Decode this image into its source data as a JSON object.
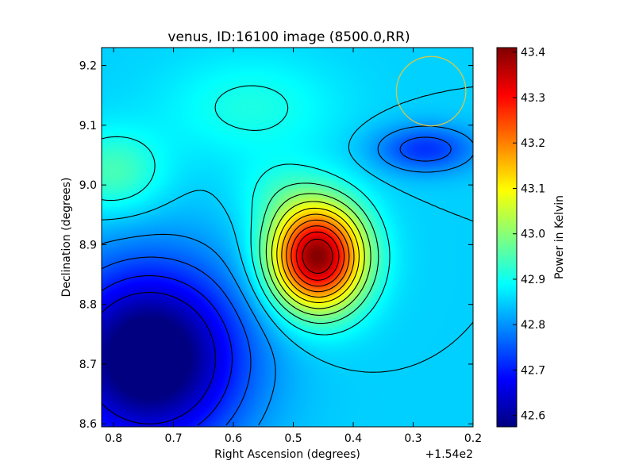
{
  "chart_data": {
    "type": "heatmap",
    "title": "venus, ID:16100 image (8500.0,RR)",
    "xlabel": "Right Ascension (degrees)",
    "ylabel": "Declination (degrees)",
    "x_offset_label": "+1.54e2",
    "xlim": [
      0.82,
      0.2
    ],
    "ylim": [
      8.595,
      9.23
    ],
    "x_ticks": [
      {
        "value": 0.8,
        "label": "0.8"
      },
      {
        "value": 0.7,
        "label": "0.7"
      },
      {
        "value": 0.6,
        "label": "0.6"
      },
      {
        "value": 0.5,
        "label": "0.5"
      },
      {
        "value": 0.4,
        "label": "0.4"
      },
      {
        "value": 0.3,
        "label": "0.3"
      },
      {
        "value": 0.2,
        "label": "0.2"
      }
    ],
    "y_ticks": [
      {
        "value": 8.6,
        "label": "8.6"
      },
      {
        "value": 8.7,
        "label": "8.7"
      },
      {
        "value": 8.8,
        "label": "8.8"
      },
      {
        "value": 8.9,
        "label": "8.9"
      },
      {
        "value": 9.0,
        "label": "9.0"
      },
      {
        "value": 9.1,
        "label": "9.1"
      },
      {
        "value": 9.2,
        "label": "9.2"
      }
    ],
    "colorbar": {
      "label": "Power in Kelvin",
      "vmin": 42.575,
      "vmax": 43.41,
      "ticks": [
        {
          "value": 42.6,
          "label": "42.6"
        },
        {
          "value": 42.7,
          "label": "42.7"
        },
        {
          "value": 42.8,
          "label": "42.8"
        },
        {
          "value": 42.9,
          "label": "42.9"
        },
        {
          "value": 43.0,
          "label": "43.0"
        },
        {
          "value": 43.1,
          "label": "43.1"
        },
        {
          "value": 43.2,
          "label": "43.2"
        },
        {
          "value": 43.3,
          "label": "43.3"
        },
        {
          "value": 43.4,
          "label": "43.4"
        }
      ],
      "colormap": "jet"
    },
    "background_level": 42.85,
    "features": [
      {
        "kind": "peak",
        "x": 0.46,
        "y": 8.88,
        "amplitude": 0.56,
        "sigma_x": 0.055,
        "sigma_y": 0.062
      },
      {
        "kind": "trough",
        "x": 0.74,
        "y": 8.71,
        "amplitude": -0.33,
        "sigma_x": 0.11,
        "sigma_y": 0.11
      },
      {
        "kind": "trough",
        "x": 0.28,
        "y": 9.06,
        "amplitude": -0.13,
        "sigma_x": 0.06,
        "sigma_y": 0.028
      },
      {
        "kind": "bump",
        "x": 0.8,
        "y": 9.02,
        "amplitude": 0.1,
        "sigma_x": 0.06,
        "sigma_y": 0.05
      },
      {
        "kind": "bump",
        "x": 0.57,
        "y": 9.13,
        "amplitude": 0.06,
        "sigma_x": 0.1,
        "sigma_y": 0.06
      },
      {
        "kind": "bump",
        "x": 0.53,
        "y": 8.99,
        "amplitude": 0.04,
        "sigma_x": 0.05,
        "sigma_y": 0.04
      }
    ],
    "beam_circle": {
      "x": 0.27,
      "y": 9.157,
      "radius_deg": 0.058,
      "color": "#d4c84a"
    },
    "contour_levels": [
      42.65,
      42.7,
      42.75,
      42.8,
      42.85,
      42.9,
      42.95,
      43.0,
      43.05,
      43.1,
      43.15,
      43.2,
      43.25,
      43.3,
      43.35
    ],
    "grid": false
  }
}
